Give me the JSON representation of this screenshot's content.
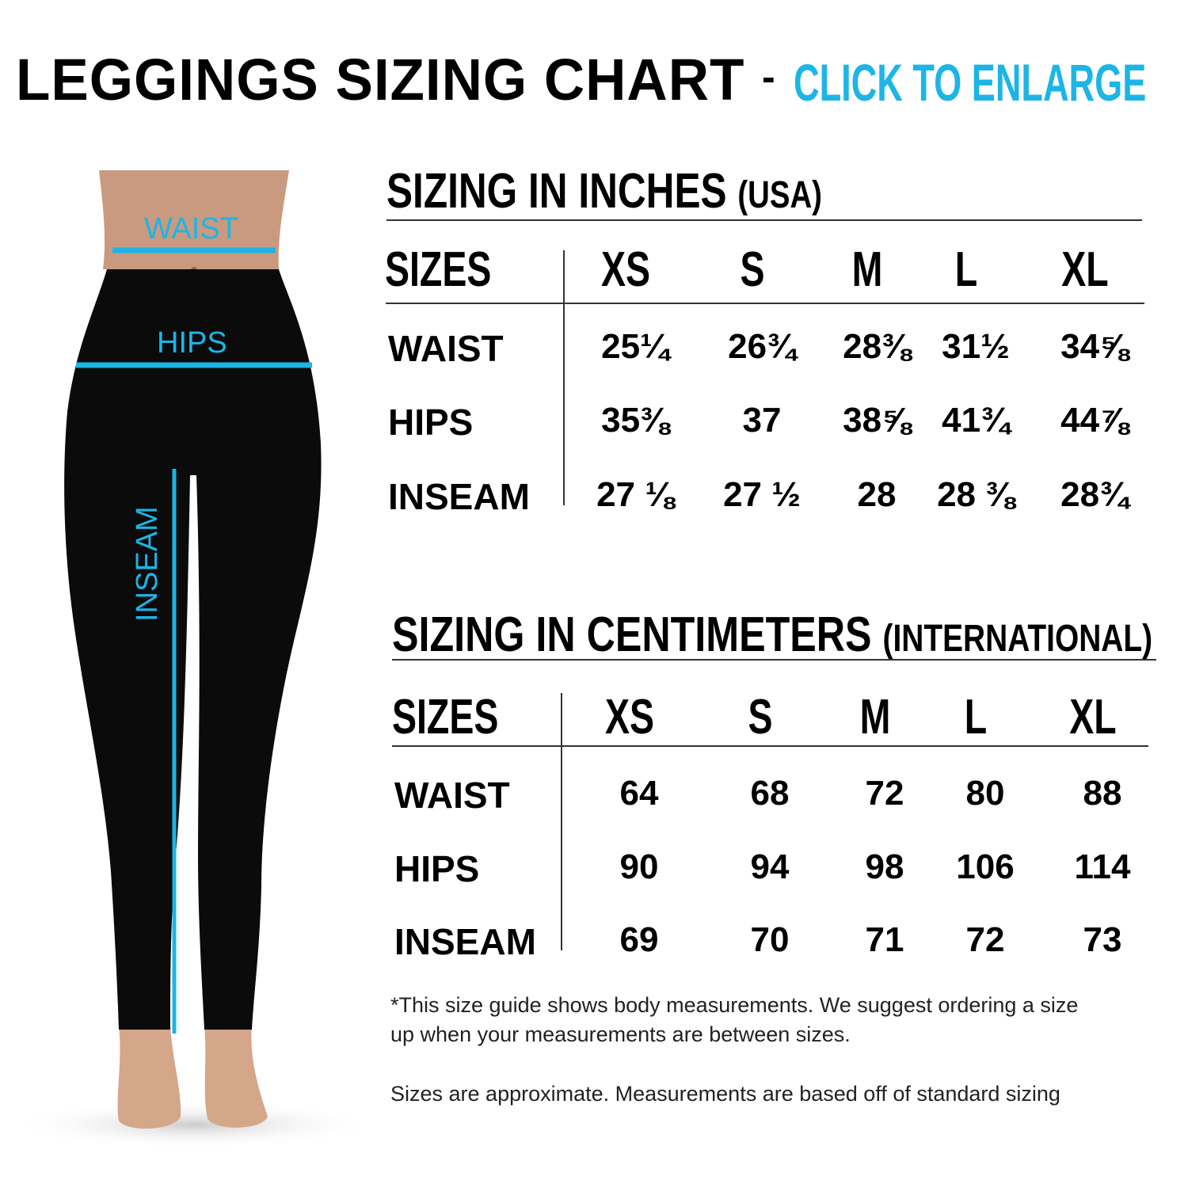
{
  "header": {
    "title": "LEGGINGS SIZING CHART",
    "separator": "-",
    "enlarge_link": "CLICK TO ENLARGE",
    "accent_color": "#1cb5e6"
  },
  "figure": {
    "labels": {
      "waist": "WAIST",
      "hips": "HIPS",
      "inseam": "INSEAM"
    }
  },
  "inches": {
    "heading": "SIZING IN INCHES",
    "heading_sub": "(USA)",
    "sizes_label": "SIZES",
    "columns": [
      "XS",
      "S",
      "M",
      "L",
      "XL"
    ],
    "rows": [
      {
        "label": "WAIST",
        "values": [
          "25¼",
          "26¾",
          "28⅜",
          "31½",
          "34⅝"
        ]
      },
      {
        "label": "HIPS",
        "values": [
          "35⅜",
          "37",
          "38⅝",
          "41¾",
          "44⅞"
        ]
      },
      {
        "label": "INSEAM",
        "values": [
          "27 ⅛",
          "27 ½",
          "28",
          "28 ⅜",
          "28¾"
        ]
      }
    ]
  },
  "centimeters": {
    "heading": "SIZING IN CENTIMETERS",
    "heading_sub": "(INTERNATIONAL)",
    "sizes_label": "SIZES",
    "columns": [
      "XS",
      "S",
      "M",
      "L",
      "XL"
    ],
    "rows": [
      {
        "label": "WAIST",
        "values": [
          "64",
          "68",
          "72",
          "80",
          "88"
        ]
      },
      {
        "label": "HIPS",
        "values": [
          "90",
          "94",
          "98",
          "106",
          "114"
        ]
      },
      {
        "label": "INSEAM",
        "values": [
          "69",
          "70",
          "71",
          "72",
          "73"
        ]
      }
    ]
  },
  "notes": {
    "line1": "*This size guide shows body measurements. We suggest ordering a size",
    "line2": "up when your measurements are between sizes.",
    "line3": "Sizes are approximate. Measurements are based off of standard sizing"
  }
}
